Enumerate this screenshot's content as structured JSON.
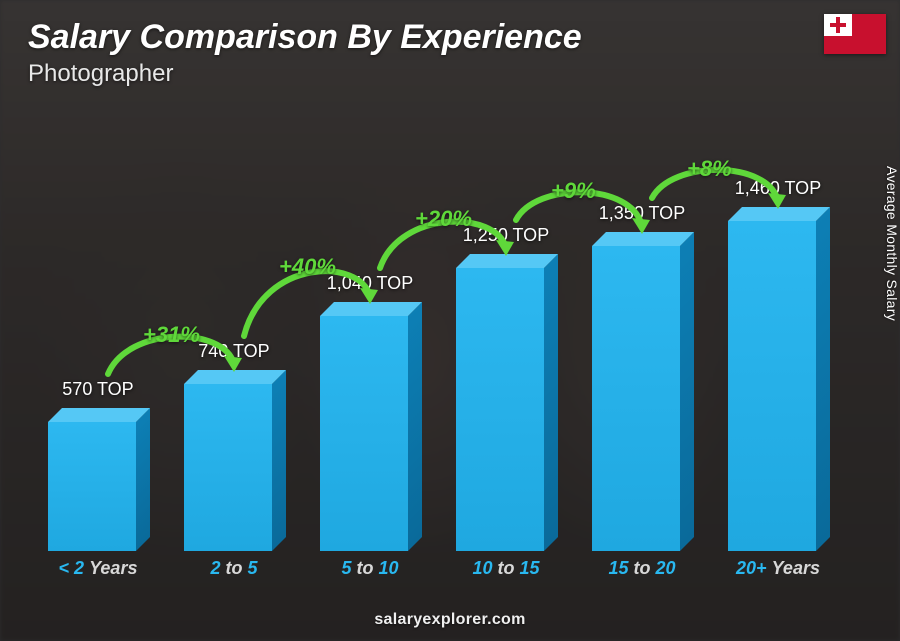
{
  "title": "Salary Comparison By Experience",
  "subtitle": "Photographer",
  "yaxis_label": "Average Monthly Salary",
  "footer": "salaryexplorer.com",
  "flag": {
    "field_color": "#c8102e",
    "canton_color": "#ffffff",
    "cross_color": "#c8102e"
  },
  "chart": {
    "type": "bar",
    "bar_color_front": "#1fa8e0",
    "bar_color_side": "#0a6a9a",
    "bar_color_top": "#55c8f5",
    "arc_color": "#5fd83a",
    "max_value": 1460,
    "max_bar_height": 330,
    "bars": [
      {
        "label_pre": "< 2",
        "label_post": "Years",
        "value": 570,
        "value_label": "570 TOP"
      },
      {
        "label_pre": "2",
        "label_mid": "to",
        "label_post": "5",
        "value": 740,
        "value_label": "740 TOP",
        "change": "+31%"
      },
      {
        "label_pre": "5",
        "label_mid": "to",
        "label_post": "10",
        "value": 1040,
        "value_label": "1,040 TOP",
        "change": "+40%"
      },
      {
        "label_pre": "10",
        "label_mid": "to",
        "label_post": "15",
        "value": 1250,
        "value_label": "1,250 TOP",
        "change": "+20%"
      },
      {
        "label_pre": "15",
        "label_mid": "to",
        "label_post": "20",
        "value": 1350,
        "value_label": "1,350 TOP",
        "change": "+9%"
      },
      {
        "label_pre": "20+",
        "label_post": "Years",
        "value": 1460,
        "value_label": "1,460 TOP",
        "change": "+8%"
      }
    ]
  }
}
